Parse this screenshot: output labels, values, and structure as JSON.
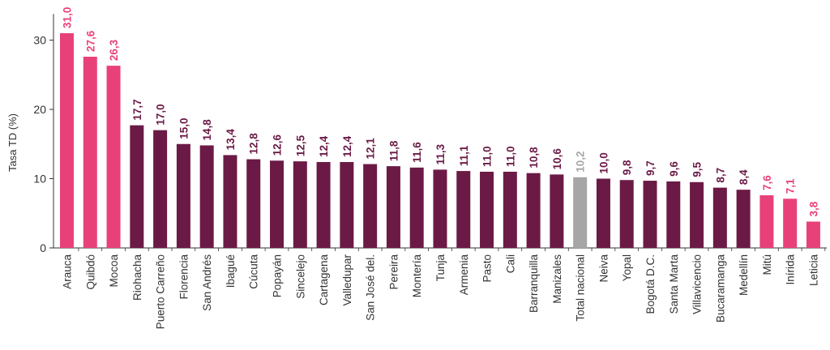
{
  "chart_data": {
    "type": "bar",
    "ylabel": "Tasa TD (%)",
    "ylim": [
      0,
      34
    ],
    "yticks": [
      0,
      10,
      20,
      30
    ],
    "grid": false,
    "categories": [
      "Arauca",
      "Quibdó",
      "Mocoa",
      "Riohacha",
      "Puerto Carreño",
      "Florencia",
      "San Andrés",
      "Ibagué",
      "Cúcuta",
      "Popayán",
      "Sincelejo",
      "Cartagena",
      "Valledupar",
      "San José del.",
      "Pereira",
      "Montería",
      "Tunja",
      "Armenia",
      "Pasto",
      "Cali",
      "Barranquilla",
      "Manizales",
      "Total nacional",
      "Neiva",
      "Yopal",
      "Bogotá D.C.",
      "Santa Marta",
      "Villavicencio",
      "Bucaramanga",
      "Medellín",
      "Mitú",
      "Inírida",
      "Leticia"
    ],
    "values": [
      31.0,
      27.6,
      26.3,
      17.7,
      17.0,
      15.0,
      14.8,
      13.4,
      12.8,
      12.6,
      12.5,
      12.4,
      12.4,
      12.1,
      11.8,
      11.6,
      11.3,
      11.1,
      11.0,
      11.0,
      10.8,
      10.6,
      10.2,
      10.0,
      9.8,
      9.7,
      9.6,
      9.5,
      8.7,
      8.4,
      7.6,
      7.1,
      3.8
    ],
    "value_labels": [
      "31,0",
      "27,6",
      "26,3",
      "17,7",
      "17,0",
      "15,0",
      "14,8",
      "13,4",
      "12,8",
      "12,6",
      "12,5",
      "12,4",
      "12,4",
      "12,1",
      "11,8",
      "11,6",
      "11,3",
      "11,1",
      "11,0",
      "11,0",
      "10,8",
      "10,6",
      "10,2",
      "10,0",
      "9,8",
      "9,7",
      "9,6",
      "9,5",
      "8,7",
      "8,4",
      "7,6",
      "7,1",
      "3,8"
    ],
    "bar_groups": [
      "high",
      "high",
      "high",
      "mid",
      "mid",
      "mid",
      "mid",
      "mid",
      "mid",
      "mid",
      "mid",
      "mid",
      "mid",
      "mid",
      "mid",
      "mid",
      "mid",
      "mid",
      "mid",
      "mid",
      "mid",
      "mid",
      "national",
      "mid",
      "mid",
      "mid",
      "mid",
      "mid",
      "mid",
      "mid",
      "low",
      "low",
      "low"
    ],
    "colors": {
      "high": "#E8417A",
      "mid": "#6B1A46",
      "national": "#A6A6A6",
      "low": "#E8417A",
      "axis": "#333333"
    }
  }
}
